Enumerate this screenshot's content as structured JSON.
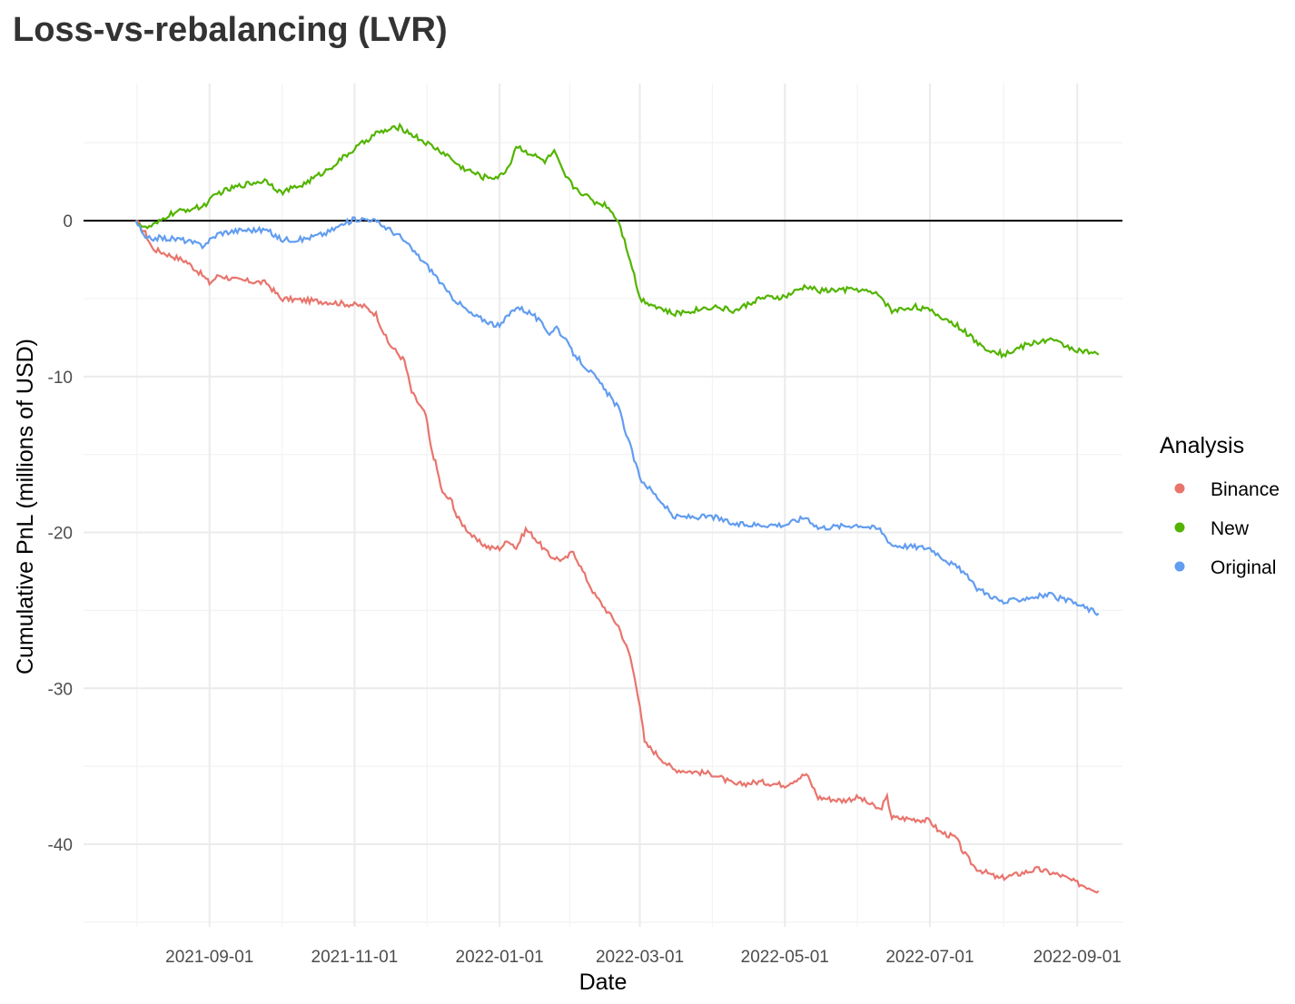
{
  "page": {
    "title": "Loss-vs-rebalancing (LVR)"
  },
  "chart_data": {
    "type": "line",
    "title": "Loss-vs-rebalancing (LVR)",
    "xlabel": "Date",
    "ylabel": "Cumulative PnL (millions of USD)",
    "x_ticks": [
      "2021-09-01",
      "2021-11-01",
      "2022-01-01",
      "2022-03-01",
      "2022-05-01",
      "2022-07-01",
      "2022-09-01"
    ],
    "y_ticks": [
      0,
      -10,
      -20,
      -30,
      -40
    ],
    "xlim": [
      "2021-07-10",
      "2022-09-20"
    ],
    "ylim": [
      -45.3,
      8.8
    ],
    "grid": true,
    "reference_line": {
      "y": 0,
      "color": "#000000"
    },
    "legend": {
      "title": "Analysis",
      "position": "right"
    },
    "series": [
      {
        "name": "Binance",
        "color": "#E8756D",
        "points": [
          [
            "2021-08-01",
            0
          ],
          [
            "2021-08-05",
            -0.8
          ],
          [
            "2021-08-08",
            -1.8
          ],
          [
            "2021-08-15",
            -2.2
          ],
          [
            "2021-08-22",
            -2.6
          ],
          [
            "2021-08-29",
            -3.5
          ],
          [
            "2021-09-01",
            -4.0
          ],
          [
            "2021-09-05",
            -3.5
          ],
          [
            "2021-09-12",
            -3.8
          ],
          [
            "2021-09-25",
            -4.0
          ],
          [
            "2021-10-01",
            -5.0
          ],
          [
            "2021-10-10",
            -5.1
          ],
          [
            "2021-10-20",
            -5.2
          ],
          [
            "2021-11-01",
            -5.4
          ],
          [
            "2021-11-05",
            -5.5
          ],
          [
            "2021-11-10",
            -6.0
          ],
          [
            "2021-11-15",
            -7.8
          ],
          [
            "2021-11-22",
            -9.0
          ],
          [
            "2021-11-25",
            -11.0
          ],
          [
            "2021-12-01",
            -12.5
          ],
          [
            "2021-12-03",
            -14.5
          ],
          [
            "2021-12-05",
            -15.5
          ],
          [
            "2021-12-08",
            -17.5
          ],
          [
            "2021-12-12",
            -18.0
          ],
          [
            "2021-12-14",
            -19.0
          ],
          [
            "2021-12-22",
            -20.5
          ],
          [
            "2021-12-28",
            -21.0
          ],
          [
            "2022-01-01",
            -21.0
          ],
          [
            "2022-01-05",
            -20.5
          ],
          [
            "2022-01-08",
            -21.0
          ],
          [
            "2022-01-12",
            -19.8
          ],
          [
            "2022-01-15",
            -20.2
          ],
          [
            "2022-01-22",
            -21.5
          ],
          [
            "2022-01-28",
            -21.8
          ],
          [
            "2022-02-01",
            -21.2
          ],
          [
            "2022-02-05",
            -22.5
          ],
          [
            "2022-02-10",
            -24.0
          ],
          [
            "2022-02-15",
            -25.0
          ],
          [
            "2022-02-20",
            -26.0
          ],
          [
            "2022-02-25",
            -28.0
          ],
          [
            "2022-03-01",
            -31.0
          ],
          [
            "2022-03-03",
            -33.5
          ],
          [
            "2022-03-10",
            -34.5
          ],
          [
            "2022-03-15",
            -35.2
          ],
          [
            "2022-04-01",
            -35.5
          ],
          [
            "2022-04-10",
            -36.2
          ],
          [
            "2022-04-20",
            -36.0
          ],
          [
            "2022-05-01",
            -36.2
          ],
          [
            "2022-05-10",
            -35.5
          ],
          [
            "2022-05-15",
            -37.0
          ],
          [
            "2022-05-25",
            -37.2
          ],
          [
            "2022-06-01",
            -37.0
          ],
          [
            "2022-06-10",
            -37.8
          ],
          [
            "2022-06-13",
            -37.0
          ],
          [
            "2022-06-15",
            -38.3
          ],
          [
            "2022-06-25",
            -38.4
          ],
          [
            "2022-07-01",
            -38.5
          ],
          [
            "2022-07-05",
            -39.2
          ],
          [
            "2022-07-12",
            -39.6
          ],
          [
            "2022-07-15",
            -40.5
          ],
          [
            "2022-07-20",
            -41.5
          ],
          [
            "2022-07-30",
            -42.2
          ],
          [
            "2022-08-05",
            -42.0
          ],
          [
            "2022-08-15",
            -41.6
          ],
          [
            "2022-08-25",
            -42.0
          ],
          [
            "2022-09-01",
            -42.5
          ],
          [
            "2022-09-10",
            -43.0
          ]
        ]
      },
      {
        "name": "New",
        "color": "#53B400",
        "points": [
          [
            "2021-08-01",
            0
          ],
          [
            "2021-08-05",
            -0.5
          ],
          [
            "2021-08-10",
            -0.2
          ],
          [
            "2021-08-15",
            0.4
          ],
          [
            "2021-08-22",
            0.7
          ],
          [
            "2021-08-29",
            0.9
          ],
          [
            "2021-09-05",
            1.8
          ],
          [
            "2021-09-15",
            2.3
          ],
          [
            "2021-09-25",
            2.6
          ],
          [
            "2021-10-01",
            1.8
          ],
          [
            "2021-10-10",
            2.3
          ],
          [
            "2021-10-20",
            3.2
          ],
          [
            "2021-11-01",
            4.6
          ],
          [
            "2021-11-10",
            5.6
          ],
          [
            "2021-11-20",
            6.0
          ],
          [
            "2021-12-01",
            5.0
          ],
          [
            "2021-12-10",
            4.2
          ],
          [
            "2021-12-15",
            3.5
          ],
          [
            "2021-12-25",
            2.8
          ],
          [
            "2022-01-01",
            2.8
          ],
          [
            "2022-01-05",
            3.5
          ],
          [
            "2022-01-08",
            4.8
          ],
          [
            "2022-01-20",
            3.8
          ],
          [
            "2022-01-24",
            4.4
          ],
          [
            "2022-01-28",
            3.0
          ],
          [
            "2022-02-01",
            2.2
          ],
          [
            "2022-02-10",
            1.2
          ],
          [
            "2022-02-15",
            1.0
          ],
          [
            "2022-02-20",
            0.0
          ],
          [
            "2022-02-25",
            -2.5
          ],
          [
            "2022-03-01",
            -5.0
          ],
          [
            "2022-03-15",
            -6.0
          ],
          [
            "2022-04-01",
            -5.5
          ],
          [
            "2022-04-10",
            -5.8
          ],
          [
            "2022-04-20",
            -5.0
          ],
          [
            "2022-05-01",
            -4.9
          ],
          [
            "2022-05-10",
            -4.2
          ],
          [
            "2022-05-15",
            -4.5
          ],
          [
            "2022-06-01",
            -4.4
          ],
          [
            "2022-06-10",
            -4.8
          ],
          [
            "2022-06-15",
            -5.8
          ],
          [
            "2022-06-25",
            -5.5
          ],
          [
            "2022-07-01",
            -5.8
          ],
          [
            "2022-07-10",
            -6.5
          ],
          [
            "2022-07-15",
            -7.0
          ],
          [
            "2022-07-22",
            -8.0
          ],
          [
            "2022-08-01",
            -8.6
          ],
          [
            "2022-08-10",
            -8.0
          ],
          [
            "2022-08-20",
            -7.6
          ],
          [
            "2022-09-01",
            -8.3
          ],
          [
            "2022-09-10",
            -8.6
          ]
        ]
      },
      {
        "name": "Original",
        "color": "#629DF0",
        "points": [
          [
            "2021-08-01",
            0
          ],
          [
            "2021-08-05",
            -1.2
          ],
          [
            "2021-08-10",
            -1.1
          ],
          [
            "2021-08-20",
            -1.2
          ],
          [
            "2021-08-29",
            -1.6
          ],
          [
            "2021-09-05",
            -0.8
          ],
          [
            "2021-09-15",
            -0.6
          ],
          [
            "2021-09-25",
            -0.6
          ],
          [
            "2021-10-01",
            -1.2
          ],
          [
            "2021-10-10",
            -1.2
          ],
          [
            "2021-10-20",
            -0.8
          ],
          [
            "2021-10-25",
            -0.4
          ],
          [
            "2021-11-01",
            0.1
          ],
          [
            "2021-11-08",
            0.1
          ],
          [
            "2021-11-15",
            -0.5
          ],
          [
            "2021-11-20",
            -1.0
          ],
          [
            "2021-12-01",
            -2.8
          ],
          [
            "2021-12-05",
            -3.5
          ],
          [
            "2021-12-10",
            -4.6
          ],
          [
            "2021-12-20",
            -6.0
          ],
          [
            "2022-01-01",
            -6.8
          ],
          [
            "2022-01-05",
            -6.0
          ],
          [
            "2022-01-08",
            -5.5
          ],
          [
            "2022-01-15",
            -6.0
          ],
          [
            "2022-01-22",
            -7.2
          ],
          [
            "2022-01-25",
            -6.8
          ],
          [
            "2022-02-01",
            -8.5
          ],
          [
            "2022-02-10",
            -10.0
          ],
          [
            "2022-02-20",
            -12.0
          ],
          [
            "2022-03-01",
            -16.5
          ],
          [
            "2022-03-10",
            -18.0
          ],
          [
            "2022-03-15",
            -19.0
          ],
          [
            "2022-04-01",
            -19.0
          ],
          [
            "2022-04-10",
            -19.5
          ],
          [
            "2022-05-01",
            -19.5
          ],
          [
            "2022-05-10",
            -19.0
          ],
          [
            "2022-05-15",
            -19.7
          ],
          [
            "2022-06-01",
            -19.5
          ],
          [
            "2022-06-10",
            -19.8
          ],
          [
            "2022-06-15",
            -20.8
          ],
          [
            "2022-07-01",
            -21.0
          ],
          [
            "2022-07-10",
            -22.0
          ],
          [
            "2022-07-15",
            -22.5
          ],
          [
            "2022-07-20",
            -23.5
          ],
          [
            "2022-08-01",
            -24.5
          ],
          [
            "2022-08-10",
            -24.2
          ],
          [
            "2022-08-20",
            -24.0
          ],
          [
            "2022-09-01",
            -24.6
          ],
          [
            "2022-09-10",
            -25.2
          ]
        ]
      }
    ]
  }
}
